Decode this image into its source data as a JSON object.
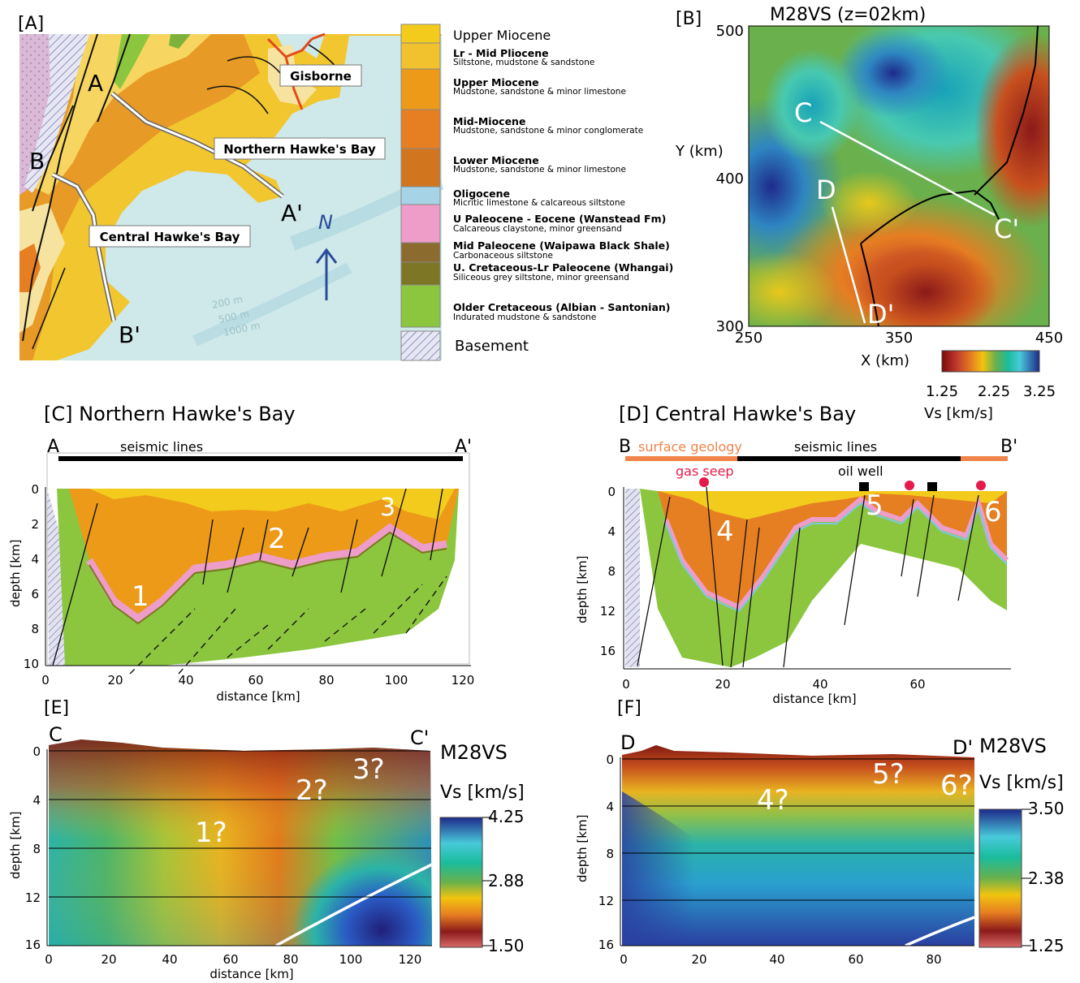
{
  "panels": {
    "A": {
      "label": "[A]",
      "places": {
        "gisborne": "Gisborne",
        "northern": "Northern Hawke's Bay",
        "central": "Central Hawke's Bay"
      },
      "points": {
        "a": "A",
        "a_prime": "A'",
        "b": "B",
        "b_prime": "B'"
      },
      "north": "N",
      "depths": [
        "200 m",
        "500 m",
        "1000 m"
      ],
      "legend": [
        {
          "name": "Upper Miocene",
          "desc": "",
          "color": "#f3cb1c"
        },
        {
          "name": "Lr - Mid Pliocene",
          "desc": "Siltstone, mudstone & sandstone",
          "color": "#f2c12e"
        },
        {
          "name": "Upper Miocene",
          "desc": "Mudstone, sandstone & minor limestone",
          "color": "#ec9a18"
        },
        {
          "name": "Mid-Miocene",
          "desc": "Mudstone, sandstone & minor conglomerate",
          "color": "#e67e22"
        },
        {
          "name": "Lower Miocene",
          "desc": "Mudstone, sandstone & minor limestone",
          "color": "#d2751f"
        },
        {
          "name": "Oligocene",
          "desc": "Micritic limestone & calcareous siltstone",
          "color": "#a6d3e6"
        },
        {
          "name": "U Paleocene - Eocene (Wanstead Fm)",
          "desc": "Calcareous claystone, minor greensand",
          "color": "#ee9cc8"
        },
        {
          "name": "Mid Paleocene (Waipawa Black Shale)",
          "desc": "Carbonaceous siltstone",
          "color": "#8c6b2e"
        },
        {
          "name": "U. Cretaceous-Lr Paleocene (Whangai)",
          "desc": "Siliceous grey siltstone, minor greensand",
          "color": "#7d7624"
        },
        {
          "name": "Older Cretaceous (Albian - Santonian)",
          "desc": "Indurated mudstone & sandstone",
          "color": "#8cc63f"
        },
        {
          "name": "Basement",
          "desc": "",
          "color": "#b8b8d8"
        }
      ]
    },
    "B": {
      "label": "[B]",
      "title": "M28VS (z=02km)",
      "ylabel": "Y (km)",
      "xlabel": "X (km)",
      "yticks": [
        "500",
        "400",
        "300"
      ],
      "xticks": [
        "250",
        "350",
        "450"
      ],
      "points": {
        "c": "C",
        "c_prime": "C'",
        "d": "D",
        "d_prime": "D'"
      },
      "colorbar_ticks": [
        "1.25",
        "2.25",
        "3.25"
      ],
      "colorbar_label": "Vs [km/s]"
    },
    "C": {
      "title": "[C] Northern Hawke's Bay",
      "start": "A",
      "end": "A'",
      "bar_label": "seismic lines",
      "ylabel": "depth [km]",
      "xlabel": "distance [km]",
      "yticks": [
        "0",
        "2",
        "4",
        "6",
        "8",
        "10"
      ],
      "xticks": [
        "0",
        "20",
        "40",
        "60",
        "80",
        "100",
        "120"
      ],
      "markers": [
        "1",
        "2",
        "3"
      ]
    },
    "D": {
      "title": "[D] Central Hawke's Bay",
      "start": "B",
      "end": "B'",
      "bar_left": "surface geology",
      "bar_mid": "seismic lines",
      "gas_seep": "gas seep",
      "oil_well": "oil well",
      "ylabel": "depth [km]",
      "xlabel": "distance [km]",
      "yticks": [
        "0",
        "4",
        "8",
        "12",
        "16"
      ],
      "xticks": [
        "0",
        "20",
        "40",
        "60"
      ],
      "markers": [
        "4",
        "5",
        "6"
      ]
    },
    "E": {
      "label": "[E]",
      "start": "C",
      "end": "C'",
      "model": "M28VS",
      "colorbar_label": "Vs [km/s]",
      "colorbar_ticks": [
        "4.25",
        "2.88",
        "1.50"
      ],
      "ylabel": "depth [km]",
      "xlabel": "distance [km]",
      "yticks": [
        "0",
        "4",
        "8",
        "12",
        "16"
      ],
      "xticks": [
        "0",
        "20",
        "40",
        "60",
        "80",
        "100",
        "120"
      ],
      "markers": [
        "1?",
        "2?",
        "3?"
      ]
    },
    "F": {
      "label": "[F]",
      "start": "D",
      "end": "D'",
      "model": "M28VS",
      "colorbar_label": "Vs [km/s]",
      "colorbar_ticks": [
        "3.50",
        "2.38",
        "1.25"
      ],
      "ylabel": "depth [km]",
      "yticks": [
        "0",
        "4",
        "8",
        "12",
        "16"
      ],
      "xticks": [
        "0",
        "20",
        "40",
        "60",
        "80"
      ],
      "markers": [
        "4?",
        "5?",
        "6?"
      ]
    }
  }
}
